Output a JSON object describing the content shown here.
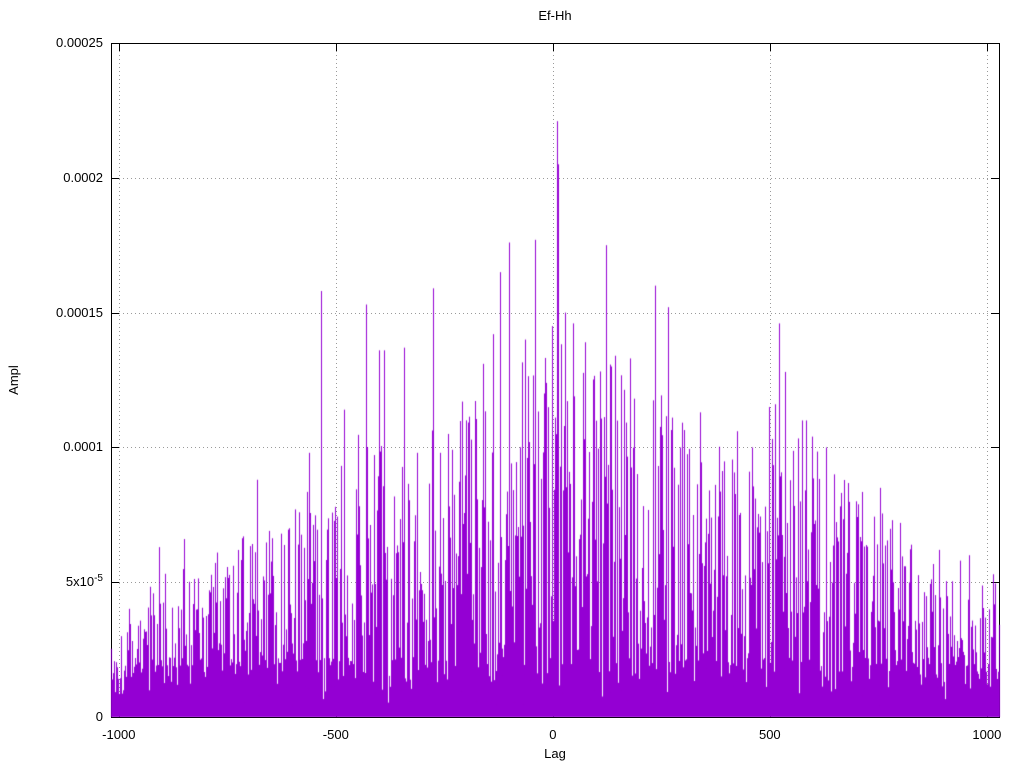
{
  "chart_data": {
    "type": "impulse",
    "title": "Ef-Hh",
    "xlabel": "Lag",
    "ylabel": "Ampl",
    "xlim": [
      -1018,
      1028
    ],
    "ylim": [
      0,
      0.00025
    ],
    "grid": true,
    "legend_position": "none",
    "line_color": "#9400D3",
    "grid_color": "#9a9a9a",
    "frame_color": "#000000",
    "background_color": "#ffffff",
    "x_ticks": [
      {
        "value": -1000,
        "label": "-1000"
      },
      {
        "value": -500,
        "label": "-500"
      },
      {
        "value": 0,
        "label": "0"
      },
      {
        "value": 500,
        "label": "500"
      },
      {
        "value": 1000,
        "label": "1000"
      }
    ],
    "y_ticks": [
      {
        "value": 0,
        "label": "0"
      },
      {
        "value": 5e-05,
        "label": "5x10",
        "sup": "-5"
      },
      {
        "value": 0.0001,
        "label": "0.0001"
      },
      {
        "value": 0.00015,
        "label": "0.00015"
      },
      {
        "value": 0.0002,
        "label": "0.0002"
      },
      {
        "value": 0.00025,
        "label": "0.00025"
      }
    ],
    "peaks": [
      [
        -906,
        6.3e-05
      ],
      [
        -848,
        6.6e-05
      ],
      [
        -772,
        6.1e-05
      ],
      [
        -680,
        8.8e-05
      ],
      [
        -594,
        7.7e-05
      ],
      [
        -560,
        9.8e-05
      ],
      [
        -532,
        0.000158
      ],
      [
        -479,
        0.000114
      ],
      [
        -430,
        0.000153
      ],
      [
        -400,
        0.000136
      ],
      [
        -388,
        0.000136
      ],
      [
        -341,
        0.000137
      ],
      [
        -312,
        9.8e-05
      ],
      [
        -274,
        0.000159
      ],
      [
        -240,
        0.000105
      ],
      [
        -207,
        0.000117
      ],
      [
        -160,
        0.000131
      ],
      [
        -136,
        0.000142
      ],
      [
        -120,
        0.000165
      ],
      [
        -100,
        0.000176
      ],
      [
        -62,
        0.00014
      ],
      [
        -39,
        0.000177
      ],
      [
        -20,
        0.00012
      ],
      [
        0,
        0.000145
      ],
      [
        10,
        0.000221
      ],
      [
        14,
        0.000205
      ],
      [
        30,
        0.00015
      ],
      [
        48,
        0.000146
      ],
      [
        75,
        0.000139
      ],
      [
        124,
        0.000175
      ],
      [
        136,
        0.00013
      ],
      [
        145,
        0.000134
      ],
      [
        178,
        0.000133
      ],
      [
        237,
        0.00016
      ],
      [
        267,
        0.000152
      ],
      [
        295,
        0.0001
      ],
      [
        340,
        0.000113
      ],
      [
        425,
        0.000106
      ],
      [
        460,
        0.0001
      ],
      [
        500,
        0.000115
      ],
      [
        514,
        0.000116
      ],
      [
        523,
        0.000146
      ],
      [
        535,
        0.000128
      ],
      [
        576,
        0.00011
      ],
      [
        585,
        0.00011
      ],
      [
        599,
        0.000104
      ],
      [
        631,
        0.0001
      ],
      [
        649,
        9e-05
      ],
      [
        700,
        8e-05
      ],
      [
        754,
        8.5e-05
      ],
      [
        783,
        7.3e-05
      ],
      [
        800,
        7.2e-05
      ],
      [
        892,
        6.2e-05
      ],
      [
        940,
        5.8e-05
      ],
      [
        961,
        6e-05
      ]
    ],
    "envelope": [
      [
        -1020,
        4e-05
      ],
      [
        -950,
        4.5e-05
      ],
      [
        -900,
        5.5e-05
      ],
      [
        -850,
        6e-05
      ],
      [
        -800,
        5.5e-05
      ],
      [
        -750,
        6e-05
      ],
      [
        -700,
        7.5e-05
      ],
      [
        -650,
        7e-05
      ],
      [
        -600,
        8e-05
      ],
      [
        -550,
        9e-05
      ],
      [
        -500,
        9.5e-05
      ],
      [
        -450,
        0.000105
      ],
      [
        -400,
        0.000105
      ],
      [
        -350,
        0.0001
      ],
      [
        -300,
        0.000105
      ],
      [
        -250,
        0.00011
      ],
      [
        -200,
        0.000115
      ],
      [
        -150,
        0.000125
      ],
      [
        -100,
        0.00013
      ],
      [
        -50,
        0.00014
      ],
      [
        0,
        0.00015
      ],
      [
        50,
        0.00014
      ],
      [
        100,
        0.000135
      ],
      [
        150,
        0.00013
      ],
      [
        200,
        0.000125
      ],
      [
        250,
        0.00012
      ],
      [
        300,
        0.00011
      ],
      [
        350,
        0.000105
      ],
      [
        400,
        0.0001
      ],
      [
        450,
        0.0001
      ],
      [
        500,
        0.00011
      ],
      [
        550,
        0.000105
      ],
      [
        600,
        0.0001
      ],
      [
        650,
        9.5e-05
      ],
      [
        700,
        8.5e-05
      ],
      [
        750,
        8e-05
      ],
      [
        800,
        7e-05
      ],
      [
        850,
        6e-05
      ],
      [
        900,
        5.5e-05
      ],
      [
        950,
        5e-05
      ],
      [
        1030,
        5.5e-05
      ]
    ],
    "noise": {
      "seed": 1337,
      "step": 1,
      "shape_exponent": 2.2,
      "floor_min": 4e-06,
      "floor_max": 2.2e-05
    }
  }
}
